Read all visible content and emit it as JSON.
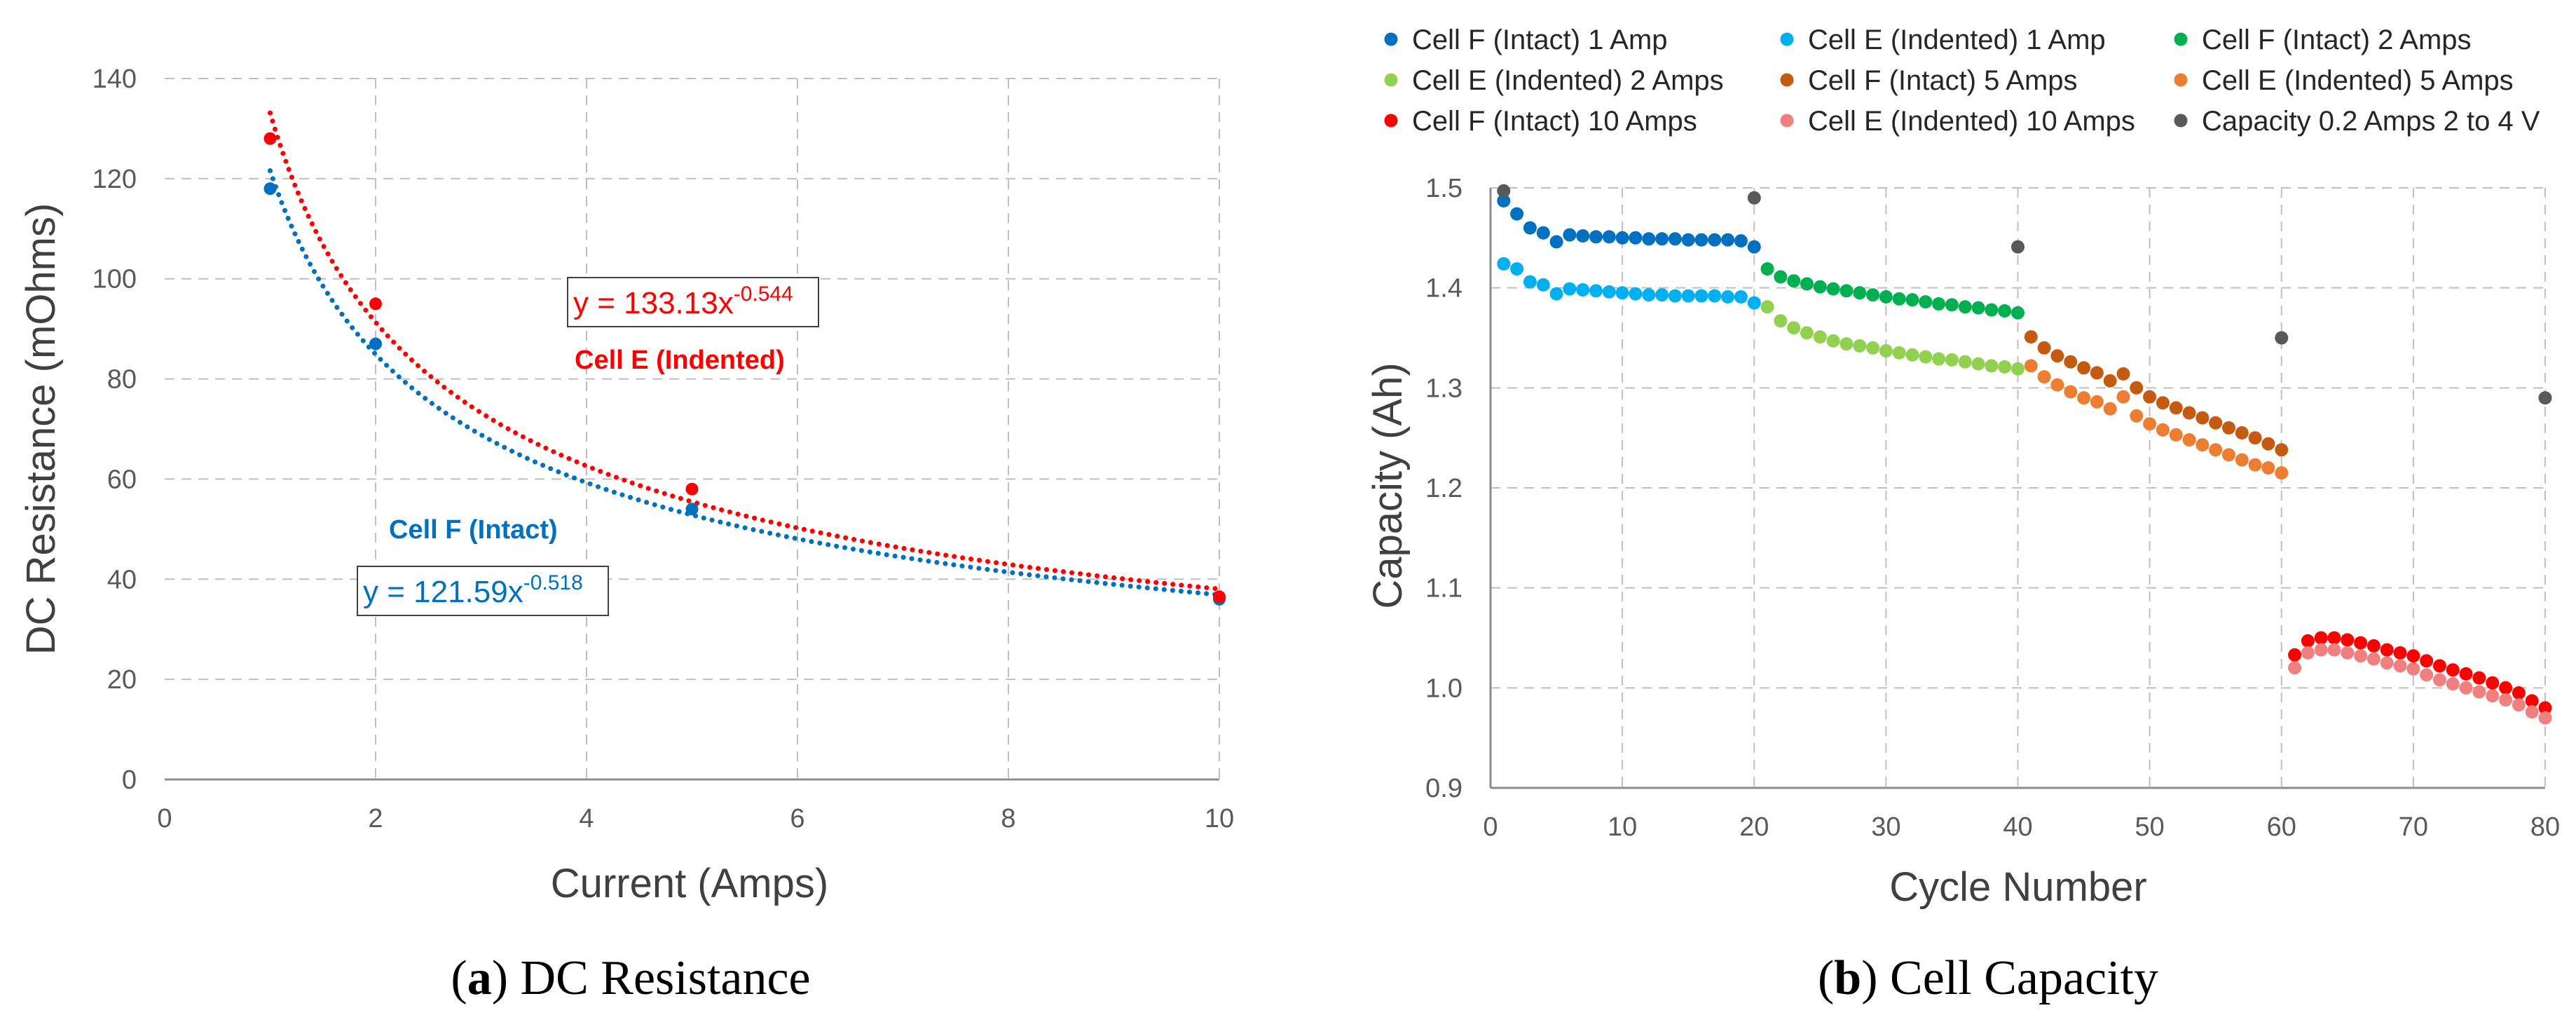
{
  "colors": {
    "blue_dark": "#0070C0",
    "blue_light": "#00B0F0",
    "green_dark": "#00B050",
    "green_light": "#92D050",
    "brown": "#C55A11",
    "orange": "#ED7D31",
    "red": "#FF0000",
    "pink": "#F08080",
    "gray": "#595959",
    "grid": "#BFBFBF"
  },
  "captions": {
    "a_prefix": "(",
    "a_letter": "a",
    "a_text": ") DC Resistance",
    "b_prefix": "(",
    "b_letter": "b",
    "b_text": ") Cell Capacity"
  },
  "chart_data": [
    {
      "id": "a",
      "type": "scatter",
      "title": "DC Resistance",
      "xlabel": "Current (Amps)",
      "ylabel": "DC Resistance (mOhms)",
      "xlim": [
        0,
        10
      ],
      "ylim": [
        0,
        140
      ],
      "xticks": [
        0,
        2,
        4,
        6,
        8,
        10
      ],
      "yticks": [
        0,
        20,
        40,
        60,
        80,
        100,
        120,
        140
      ],
      "grid": true,
      "series": [
        {
          "name": "Cell F (Intact)",
          "color": "#0070C0",
          "x": [
            1,
            2,
            5,
            10
          ],
          "y": [
            118,
            87,
            54,
            36
          ],
          "trend": {
            "type": "power",
            "a": 121.59,
            "b": -0.518,
            "from": 1,
            "to": 10
          }
        },
        {
          "name": "Cell E (Indented)",
          "color": "#FF0000",
          "x": [
            1,
            2,
            5,
            10
          ],
          "y": [
            128,
            95,
            58,
            36.5
          ],
          "trend": {
            "type": "power",
            "a": 133.13,
            "b": -0.544,
            "from": 1,
            "to": 10
          }
        }
      ],
      "annotations": {
        "eq_red_base": "y = 133.13x",
        "eq_red_exp": "-0.544",
        "label_red": "Cell E (Indented)",
        "eq_blue_base": "y = 121.59x",
        "eq_blue_exp": "-0.518",
        "label_blue": "Cell F (Intact)"
      }
    },
    {
      "id": "b",
      "type": "scatter",
      "title": "Cell Capacity",
      "xlabel": "Cycle Number",
      "ylabel": "Capacity (Ah)",
      "xlim": [
        0,
        80
      ],
      "ylim": [
        0.9,
        1.5
      ],
      "xticks": [
        0,
        10,
        20,
        30,
        40,
        50,
        60,
        70,
        80
      ],
      "yticks": [
        0.9,
        1.0,
        1.1,
        1.2,
        1.3,
        1.4,
        1.5
      ],
      "grid": true,
      "legend": "top",
      "series": [
        {
          "name": "Cell F (Intact) 1 Amp",
          "color": "#0070C0",
          "x": [
            1,
            2,
            3,
            4,
            5,
            6,
            7,
            8,
            9,
            10,
            11,
            12,
            13,
            14,
            15,
            16,
            17,
            18,
            19,
            20
          ],
          "y": [
            1.487,
            1.474,
            1.46,
            1.455,
            1.446,
            1.453,
            1.452,
            1.451,
            1.451,
            1.45,
            1.45,
            1.449,
            1.449,
            1.449,
            1.448,
            1.448,
            1.448,
            1.448,
            1.447,
            1.441
          ]
        },
        {
          "name": "Cell E (Indented) 1 Amp",
          "color": "#00B0F0",
          "x": [
            1,
            2,
            3,
            4,
            5,
            6,
            7,
            8,
            9,
            10,
            11,
            12,
            13,
            14,
            15,
            16,
            17,
            18,
            19,
            20
          ],
          "y": [
            1.424,
            1.419,
            1.406,
            1.403,
            1.394,
            1.399,
            1.398,
            1.397,
            1.396,
            1.395,
            1.394,
            1.393,
            1.393,
            1.392,
            1.392,
            1.392,
            1.392,
            1.391,
            1.391,
            1.385
          ]
        },
        {
          "name": "Cell F (Intact) 2 Amps",
          "color": "#00B050",
          "x": [
            21,
            22,
            23,
            24,
            25,
            26,
            27,
            28,
            29,
            30,
            31,
            32,
            33,
            34,
            35,
            36,
            37,
            38,
            39,
            40
          ],
          "y": [
            1.419,
            1.411,
            1.407,
            1.404,
            1.401,
            1.399,
            1.397,
            1.395,
            1.393,
            1.391,
            1.389,
            1.388,
            1.386,
            1.384,
            1.383,
            1.381,
            1.38,
            1.378,
            1.377,
            1.375
          ]
        },
        {
          "name": "Cell E (Indented) 2 Amps",
          "color": "#92D050",
          "x": [
            21,
            22,
            23,
            24,
            25,
            26,
            27,
            28,
            29,
            30,
            31,
            32,
            33,
            34,
            35,
            36,
            37,
            38,
            39,
            40
          ],
          "y": [
            1.381,
            1.367,
            1.36,
            1.355,
            1.351,
            1.347,
            1.344,
            1.342,
            1.34,
            1.337,
            1.335,
            1.333,
            1.331,
            1.329,
            1.328,
            1.326,
            1.324,
            1.322,
            1.321,
            1.319
          ]
        },
        {
          "name": "Cell F (Intact) 5 Amps",
          "color": "#C55A11",
          "x": [
            41,
            42,
            43,
            44,
            45,
            46,
            47,
            48,
            49,
            50,
            51,
            52,
            53,
            54,
            55,
            56,
            57,
            58,
            59,
            60
          ],
          "y": [
            1.351,
            1.34,
            1.332,
            1.326,
            1.32,
            1.315,
            1.307,
            1.314,
            1.3,
            1.291,
            1.285,
            1.28,
            1.275,
            1.27,
            1.265,
            1.26,
            1.255,
            1.25,
            1.244,
            1.238
          ]
        },
        {
          "name": "Cell E (Indented) 5 Amps",
          "color": "#ED7D31",
          "x": [
            41,
            42,
            43,
            44,
            45,
            46,
            47,
            48,
            49,
            50,
            51,
            52,
            53,
            54,
            55,
            56,
            57,
            58,
            59,
            60
          ],
          "y": [
            1.322,
            1.311,
            1.303,
            1.296,
            1.29,
            1.286,
            1.279,
            1.291,
            1.272,
            1.264,
            1.258,
            1.253,
            1.248,
            1.243,
            1.238,
            1.233,
            1.228,
            1.223,
            1.22,
            1.215
          ]
        },
        {
          "name": "Cell F (Intact) 10 Amps",
          "color": "#FF0000",
          "x": [
            61,
            62,
            63,
            64,
            65,
            66,
            67,
            68,
            69,
            70,
            71,
            72,
            73,
            74,
            75,
            76,
            77,
            78,
            79,
            80
          ],
          "y": [
            1.033,
            1.047,
            1.05,
            1.05,
            1.048,
            1.045,
            1.042,
            1.038,
            1.035,
            1.032,
            1.027,
            1.022,
            1.018,
            1.014,
            1.01,
            1.005,
            1.0,
            0.995,
            0.987,
            0.98
          ]
        },
        {
          "name": "Cell E (Indented) 10 Amps",
          "color": "#F08080",
          "x": [
            61,
            62,
            63,
            64,
            65,
            66,
            67,
            68,
            69,
            70,
            71,
            72,
            73,
            74,
            75,
            76,
            77,
            78,
            79,
            80
          ],
          "y": [
            1.02,
            1.035,
            1.038,
            1.038,
            1.035,
            1.032,
            1.029,
            1.025,
            1.022,
            1.019,
            1.013,
            1.008,
            1.004,
            1.0,
            0.996,
            0.992,
            0.988,
            0.983,
            0.976,
            0.97
          ]
        },
        {
          "name": "Capacity 0.2 Amps 2 to 4 V",
          "color": "#595959",
          "x": [
            1,
            20,
            40,
            60,
            80
          ],
          "y": [
            1.497,
            1.49,
            1.441,
            1.35,
            1.29
          ]
        }
      ]
    }
  ]
}
